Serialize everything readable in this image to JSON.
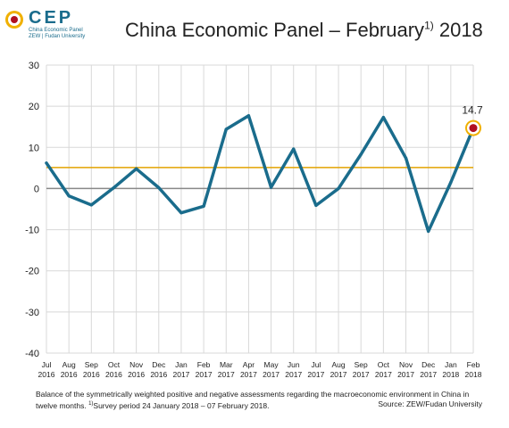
{
  "logo": {
    "text": "CEP",
    "sub1": "China Economic Panel",
    "sub2": "ZEW | Fudan University"
  },
  "title": "China Economic Panel – February",
  "title_sup": "1)",
  "title_year": " 2018",
  "colors": {
    "series": "#1a6c8c",
    "reference": "#e3a300",
    "zero": "#888888",
    "marker_outer": "#f0b000",
    "marker_inner": "#b01020"
  },
  "chart_data": {
    "type": "line",
    "title": "China Economic Panel – February 2018",
    "xlabel": "",
    "ylabel": "",
    "ylim": [
      -40,
      30
    ],
    "yticks": [
      -40,
      -30,
      -20,
      -10,
      0,
      10,
      20,
      30
    ],
    "grid": true,
    "categories": [
      [
        "Jul",
        "2016"
      ],
      [
        "Aug",
        "2016"
      ],
      [
        "Sep",
        "2016"
      ],
      [
        "Oct",
        "2016"
      ],
      [
        "Nov",
        "2016"
      ],
      [
        "Dec",
        "2016"
      ],
      [
        "Jan",
        "2017"
      ],
      [
        "Feb",
        "2017"
      ],
      [
        "Mar",
        "2017"
      ],
      [
        "Apr",
        "2017"
      ],
      [
        "May",
        "2017"
      ],
      [
        "Jun",
        "2017"
      ],
      [
        "Jul",
        "2017"
      ],
      [
        "Aug",
        "2017"
      ],
      [
        "Sep",
        "2017"
      ],
      [
        "Oct",
        "2017"
      ],
      [
        "Nov",
        "2017"
      ],
      [
        "Dec",
        "2017"
      ],
      [
        "Jan",
        "2018"
      ],
      [
        "Feb",
        "2018"
      ]
    ],
    "series": [
      {
        "values": [
          6.2,
          -1.8,
          -4.0,
          0.2,
          4.8,
          0.2,
          -5.9,
          -4.3,
          14.4,
          17.7,
          0.3,
          9.6,
          -4.1,
          0.0,
          8.3,
          17.3,
          7.4,
          -10.4,
          1.5,
          14.7
        ]
      }
    ],
    "reference_value": 5.1,
    "annotation": "14.7"
  },
  "footnote": {
    "text": "Balance of the symmetrically weighted positive and negative assessments regarding the macroeconomic environment in China in twelve months. ",
    "sup": "1)",
    "survey": "Survey period 24 January 2018 – 07 February 2018.",
    "source": "Source: ZEW/Fudan University"
  }
}
